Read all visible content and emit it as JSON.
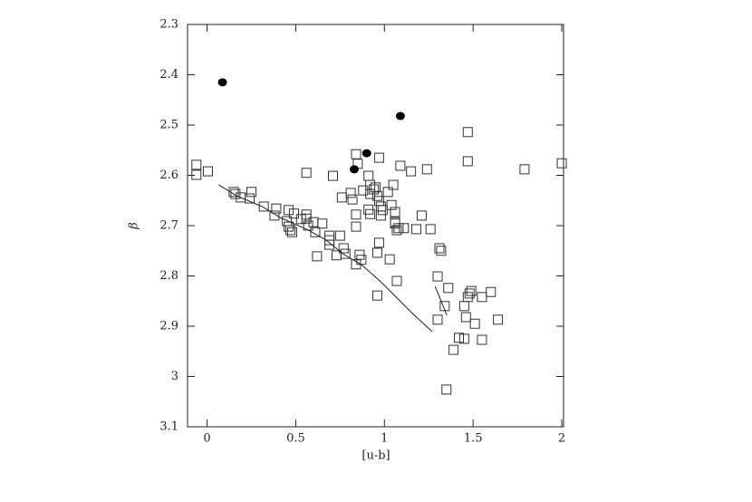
{
  "chart_data": {
    "type": "scatter",
    "xlabel": "[u-b]",
    "ylabel": "β",
    "xlim": [
      -0.11,
      2.01
    ],
    "ylim": [
      3.1,
      2.3
    ],
    "xticks": [
      0,
      0.5,
      1,
      1.5,
      2
    ],
    "yticks": [
      2.3,
      2.4,
      2.5,
      2.6,
      2.7,
      2.8,
      2.9,
      3,
      3.1
    ],
    "series": [
      {
        "marker": "square",
        "color": "#333333",
        "x": [
          -0.06,
          -0.06,
          0.005,
          0.15,
          0.16,
          0.19,
          0.25,
          0.24,
          0.32,
          0.39,
          0.38,
          0.46,
          0.45,
          0.46,
          0.47,
          0.48,
          0.49,
          0.53,
          0.56,
          0.56,
          0.57,
          0.6,
          0.61,
          0.65,
          0.69,
          0.69,
          0.69,
          0.62,
          0.73,
          0.77,
          0.78,
          0.75,
          0.76,
          0.81,
          0.82,
          0.84,
          0.84,
          0.86,
          0.84,
          0.87,
          0.56,
          0.71,
          0.84,
          0.85,
          0.97,
          1.09,
          1.15,
          1.24,
          1.47,
          1.47,
          1.79,
          2.0,
          0.88,
          0.91,
          0.92,
          0.92,
          0.94,
          0.95,
          0.96,
          0.97,
          0.98,
          0.99,
          0.98,
          0.91,
          0.92,
          1.04,
          1.05,
          1.06,
          1.06,
          1.06,
          1.07,
          1.08,
          1.02,
          1.21,
          1.18,
          1.11,
          1.26,
          0.97,
          0.96,
          1.03,
          1.07,
          0.96,
          1.31,
          1.32,
          1.3,
          1.36,
          1.34,
          1.3,
          1.39,
          1.42,
          1.35,
          1.45,
          1.46,
          1.45,
          1.47,
          1.48,
          1.49,
          1.51,
          1.55,
          1.6,
          1.55,
          1.64
        ],
        "values": [
          2.579,
          2.599,
          2.592,
          2.633,
          2.637,
          2.644,
          2.633,
          2.646,
          2.662,
          2.666,
          2.68,
          2.669,
          2.691,
          2.702,
          2.709,
          2.713,
          2.676,
          2.687,
          2.678,
          2.686,
          2.7,
          2.693,
          2.713,
          2.696,
          2.729,
          2.738,
          2.72,
          2.761,
          2.759,
          2.745,
          2.756,
          2.72,
          2.644,
          2.635,
          2.648,
          2.678,
          2.702,
          2.758,
          2.777,
          2.768,
          2.595,
          2.601,
          2.558,
          2.577,
          2.565,
          2.581,
          2.592,
          2.588,
          2.514,
          2.572,
          2.588,
          2.576,
          2.63,
          2.601,
          2.619,
          2.637,
          2.628,
          2.624,
          2.641,
          2.651,
          2.662,
          2.669,
          2.68,
          2.668,
          2.677,
          2.659,
          2.619,
          2.673,
          2.693,
          2.696,
          2.709,
          2.705,
          2.633,
          2.68,
          2.707,
          2.705,
          2.707,
          2.734,
          2.754,
          2.767,
          2.81,
          2.839,
          2.745,
          2.75,
          2.801,
          2.824,
          2.86,
          2.887,
          2.947,
          2.923,
          3.026,
          2.925,
          2.882,
          2.86,
          2.842,
          2.835,
          2.83,
          2.895,
          2.842,
          2.832,
          2.927,
          2.887
        ]
      },
      {
        "marker": "circle",
        "color": "#000000",
        "x": [
          0.087,
          1.09,
          0.9,
          0.83
        ],
        "values": [
          2.415,
          2.482,
          2.556,
          2.588
        ]
      },
      {
        "marker": "line",
        "color": "#222222",
        "x": [
          0.066,
          0.168,
          0.311,
          0.413,
          0.566,
          0.668,
          0.77,
          0.872,
          0.974,
          1.077,
          1.153,
          1.27
        ],
        "values": [
          2.619,
          2.641,
          2.662,
          2.684,
          2.708,
          2.728,
          2.757,
          2.778,
          2.81,
          2.846,
          2.873,
          2.911
        ]
      },
      {
        "marker": "line",
        "color": "#222222",
        "x": [
          1.286,
          1.352
        ],
        "values": [
          2.821,
          2.878
        ]
      }
    ]
  }
}
